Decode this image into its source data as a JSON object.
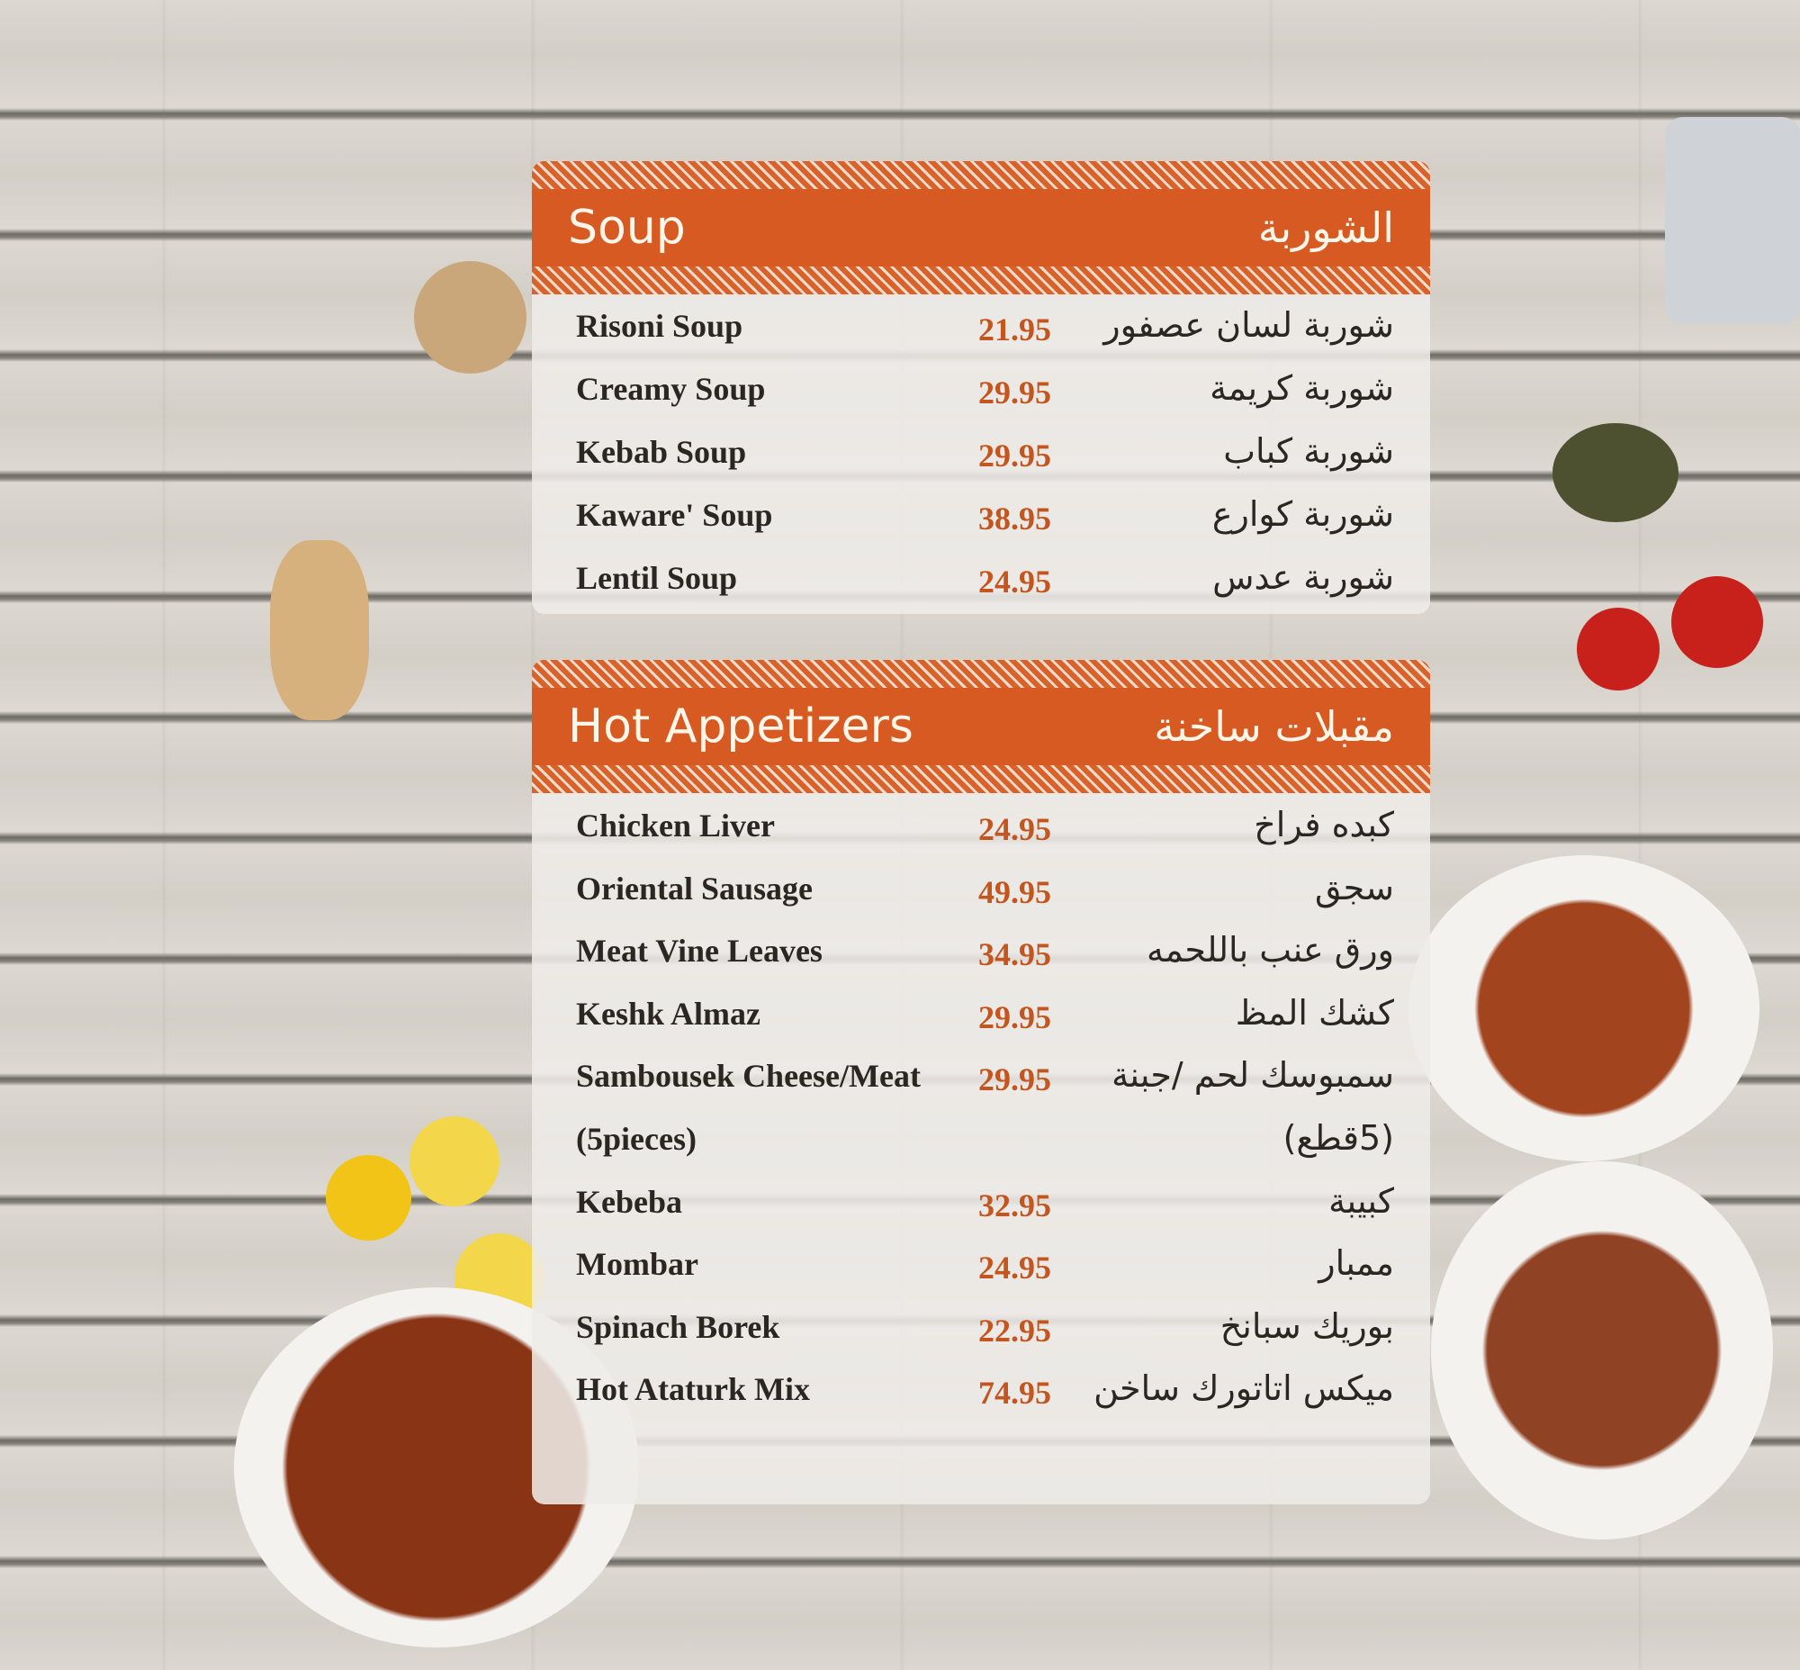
{
  "sections": [
    {
      "title_en": "Soup",
      "title_ar": "الشوربة",
      "items": [
        {
          "en": "Risoni Soup",
          "price": "21.95",
          "ar": "شوربة لسان عصفور"
        },
        {
          "en": "Creamy Soup",
          "price": "29.95",
          "ar": "شوربة كريمة"
        },
        {
          "en": "Kebab Soup",
          "price": "29.95",
          "ar": "شوربة كباب"
        },
        {
          "en": "Kaware' Soup",
          "price": "38.95",
          "ar": "شوربة كوارع"
        },
        {
          "en": "Lentil Soup",
          "price": "24.95",
          "ar": "شوربة عدس"
        }
      ]
    },
    {
      "title_en": "Hot Appetizers",
      "title_ar": "مقبلات ساخنة",
      "items": [
        {
          "en": "Chicken Liver",
          "price": "24.95",
          "ar": "كبده فراخ"
        },
        {
          "en": "Oriental Sausage",
          "price": "49.95",
          "ar": "سجق"
        },
        {
          "en": "Meat Vine Leaves",
          "price": "34.95",
          "ar": "ورق عنب باللحمه"
        },
        {
          "en": "Keshk Almaz",
          "price": "29.95",
          "ar": "كشك المظ"
        },
        {
          "en": "Sambousek Cheese/Meat",
          "price": "29.95",
          "ar": "سمبوسك لحم /جبنة"
        },
        {
          "en": "(5pieces)",
          "price": "",
          "ar": "(5قطع)"
        },
        {
          "en": "Kebeba",
          "price": "32.95",
          "ar": "كبيبة"
        },
        {
          "en": "Mombar",
          "price": "24.95",
          "ar": "ممبار"
        },
        {
          "en": "Spinach Borek",
          "price": "22.95",
          "ar": "بوريك سبانخ"
        },
        {
          "en": "Hot Ataturk Mix",
          "price": "74.95",
          "ar": "ميكس اتاتورك ساخن"
        }
      ]
    }
  ],
  "colors": {
    "header": "#d65a22",
    "price": "#c4551e",
    "text": "#2c2622"
  }
}
